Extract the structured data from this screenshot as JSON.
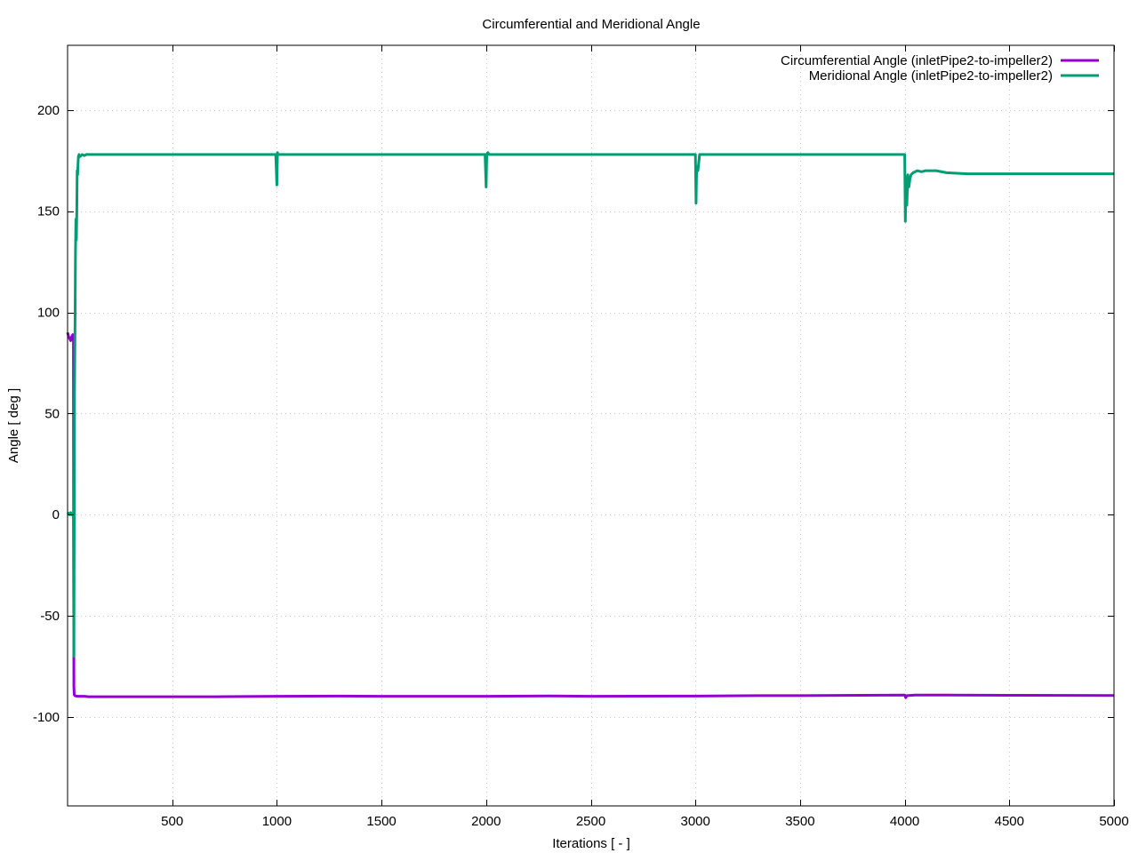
{
  "chart_data": {
    "type": "line",
    "title": "Circumferential and Meridional Angle",
    "xlabel": "Iterations [ - ]",
    "ylabel": "Angle [ deg ]",
    "xlim": [
      0,
      5000
    ],
    "ylim": [
      -144,
      232
    ],
    "xticks": [
      500,
      1000,
      1500,
      2000,
      2500,
      3000,
      3500,
      4000,
      4500,
      5000
    ],
    "yticks": [
      -100,
      -50,
      0,
      50,
      100,
      150,
      200
    ],
    "grid": true,
    "legend_position": "top-right",
    "series": [
      {
        "name": "Circumferential Angle (inletPipe2-to-impeller2)",
        "color": "#9400d3",
        "x": [
          0,
          5,
          10,
          15,
          20,
          25,
          28,
          30,
          32,
          35,
          40,
          50,
          60,
          80,
          100,
          200,
          500,
          700,
          1000,
          1300,
          1500,
          2000,
          2300,
          2500,
          3000,
          3300,
          3500,
          4000,
          4005,
          4010,
          4050,
          4200,
          4500,
          5000
        ],
        "y": [
          90,
          88,
          87,
          86,
          88,
          89,
          88,
          -85,
          -89,
          -89.5,
          -89.7,
          -89.8,
          -89.8,
          -89.8,
          -90,
          -90,
          -90,
          -90,
          -89.8,
          -89.7,
          -89.8,
          -89.8,
          -89.6,
          -89.8,
          -89.7,
          -89.5,
          -89.5,
          -89.2,
          -90.5,
          -89.5,
          -89.2,
          -89.2,
          -89.3,
          -89.4
        ]
      },
      {
        "name": "Meridional Angle (inletPipe2-to-impeller2)",
        "color": "#009e73",
        "x": [
          0,
          5,
          10,
          15,
          20,
          25,
          28,
          30,
          33,
          36,
          38,
          40,
          42,
          44,
          46,
          48,
          50,
          52,
          55,
          60,
          65,
          70,
          80,
          90,
          100,
          150,
          300,
          600,
          995,
          1000,
          1003,
          1006,
          1010,
          1300,
          1600,
          1995,
          2000,
          2003,
          2008,
          2015,
          2300,
          2600,
          2995,
          3000,
          3003,
          3006,
          3012,
          3020,
          3025,
          3300,
          3600,
          3995,
          4000,
          4003,
          4007,
          4010,
          4015,
          4020,
          4025,
          4030,
          4040,
          4060,
          4080,
          4100,
          4150,
          4200,
          4300,
          4400,
          4500,
          4700,
          5000
        ],
        "y": [
          1,
          0.5,
          0,
          1,
          0,
          0,
          -1,
          -70,
          60,
          100,
          130,
          146,
          136,
          150,
          170,
          168,
          174,
          177,
          178,
          177,
          177.5,
          178,
          177.5,
          178,
          178,
          178,
          178,
          178,
          178,
          163,
          179,
          178,
          178,
          178,
          178,
          178,
          162,
          178,
          179,
          178,
          178,
          178,
          178,
          178,
          154,
          172,
          170,
          178,
          178,
          178,
          178,
          178,
          178,
          145,
          167,
          153,
          168,
          162,
          166,
          168,
          169,
          170,
          169.5,
          170,
          170,
          169,
          168.5,
          168.5,
          168.5,
          168.5,
          168.5
        ]
      }
    ]
  }
}
